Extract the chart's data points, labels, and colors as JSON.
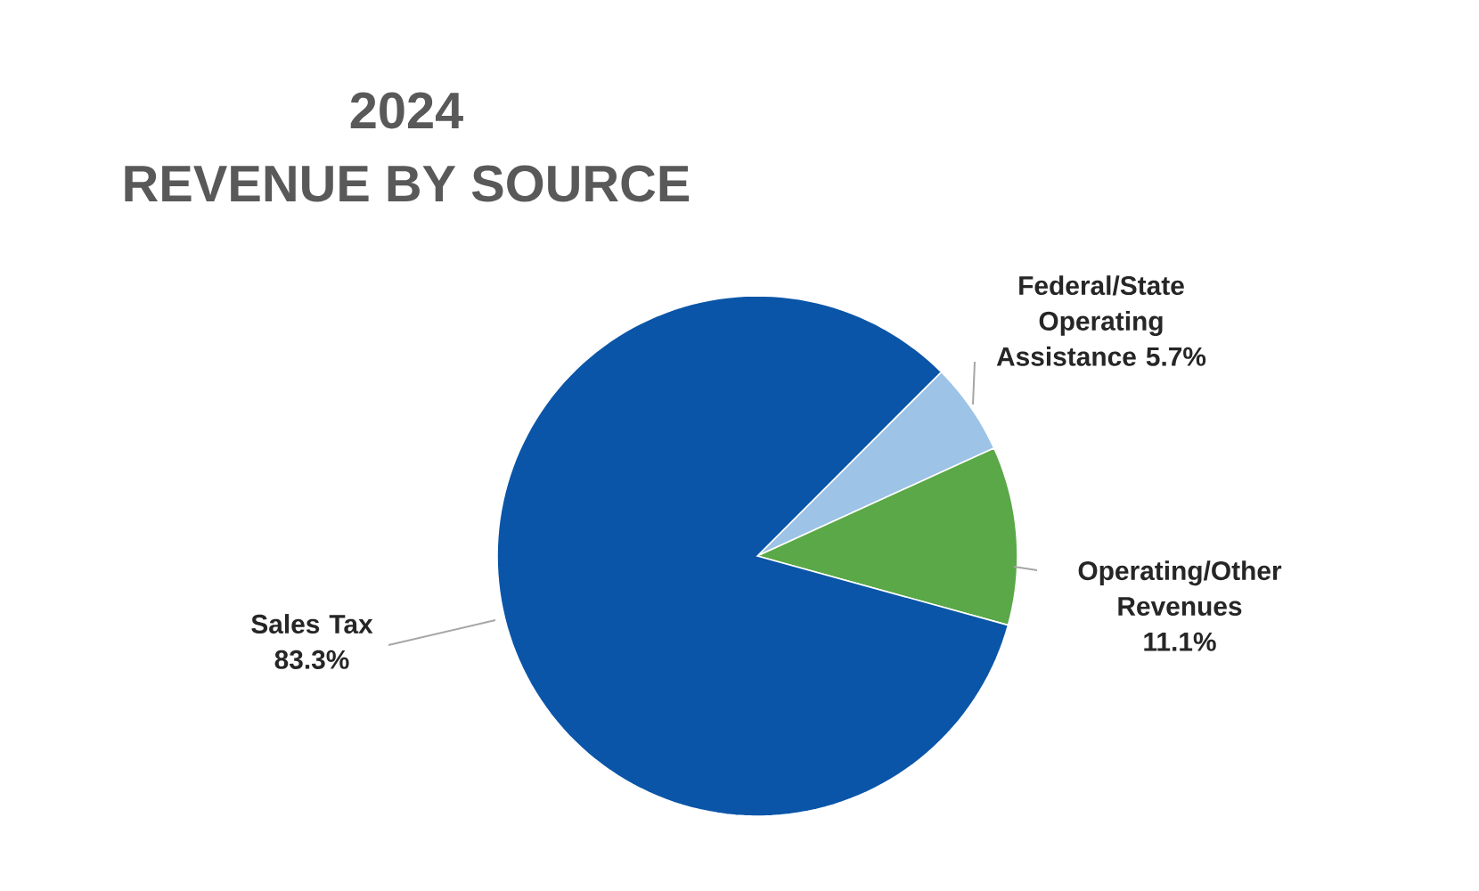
{
  "chart_data": {
    "type": "pie",
    "title": "2024",
    "subtitle": "REVENUE BY SOURCE",
    "categories": [
      "Federal/State Operating Assistance",
      "Operating/Other Revenues",
      "Sales Tax"
    ],
    "values": [
      5.7,
      11.1,
      83.3
    ],
    "value_labels": [
      "5.7%",
      "11.1%",
      "83.3%"
    ],
    "colors": [
      "#9dc3e6",
      "#5aa847",
      "#0a55a8"
    ]
  }
}
